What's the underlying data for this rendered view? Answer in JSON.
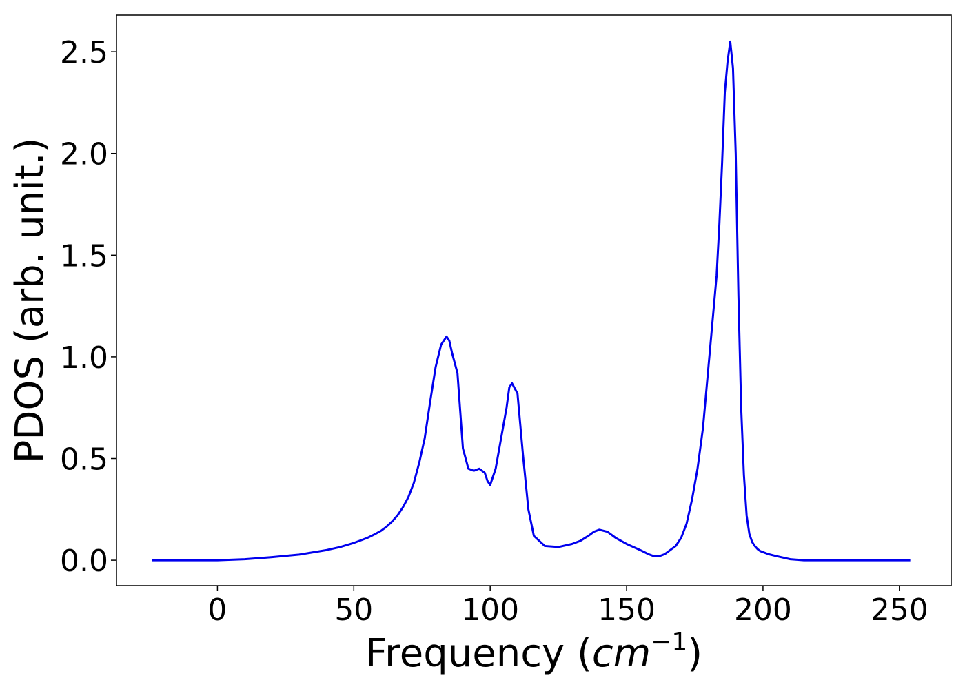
{
  "chart_data": {
    "type": "line",
    "title": "",
    "xlabel": {
      "prefix": "Frequency (",
      "math": "cm",
      "superscript": "−1",
      "suffix": ")"
    },
    "ylabel": "PDOS (arb. unit.)",
    "xlim": [
      -37,
      269
    ],
    "ylim": [
      -0.125,
      2.68
    ],
    "xticks": [
      0,
      50,
      100,
      150,
      200,
      250
    ],
    "xtick_labels": [
      "0",
      "50",
      "100",
      "150",
      "200",
      "250"
    ],
    "yticks": [
      0.0,
      0.5,
      1.0,
      1.5,
      2.0,
      2.5
    ],
    "ytick_labels": [
      "0.0",
      "0.5",
      "1.0",
      "1.5",
      "2.0",
      "2.5"
    ],
    "grid": false,
    "legend": "none",
    "series": [
      {
        "color": "#0000ee",
        "x": [
          -24,
          0,
          10,
          20,
          30,
          40,
          45,
          50,
          55,
          58,
          60,
          62,
          64,
          66,
          68,
          70,
          72,
          74,
          76,
          78,
          80,
          82,
          84,
          85,
          86,
          88,
          90,
          92,
          94,
          96,
          98,
          99,
          100,
          102,
          104,
          106,
          107,
          108,
          110,
          112,
          114,
          116,
          120,
          125,
          130,
          133,
          136,
          138,
          140,
          143,
          146,
          150,
          155,
          158,
          160,
          162,
          164,
          166,
          168,
          170,
          172,
          174,
          176,
          178,
          180,
          182,
          183,
          184,
          185,
          186,
          187,
          188,
          189,
          190,
          191,
          192,
          193,
          194,
          195,
          196,
          197,
          198,
          199,
          200,
          202,
          205,
          210,
          215,
          220,
          225,
          230,
          233,
          235,
          240,
          250,
          254
        ],
        "values": [
          0.0,
          0.0,
          0.005,
          0.015,
          0.028,
          0.05,
          0.065,
          0.085,
          0.11,
          0.13,
          0.145,
          0.165,
          0.19,
          0.22,
          0.26,
          0.31,
          0.38,
          0.48,
          0.6,
          0.78,
          0.95,
          1.06,
          1.1,
          1.08,
          1.02,
          0.92,
          0.55,
          0.45,
          0.44,
          0.45,
          0.43,
          0.39,
          0.37,
          0.45,
          0.6,
          0.75,
          0.85,
          0.87,
          0.82,
          0.52,
          0.25,
          0.12,
          0.07,
          0.065,
          0.08,
          0.095,
          0.12,
          0.14,
          0.15,
          0.14,
          0.11,
          0.08,
          0.05,
          0.03,
          0.02,
          0.02,
          0.03,
          0.05,
          0.07,
          0.11,
          0.18,
          0.3,
          0.45,
          0.65,
          0.95,
          1.25,
          1.4,
          1.65,
          1.95,
          2.3,
          2.45,
          2.55,
          2.42,
          2.0,
          1.3,
          0.75,
          0.42,
          0.22,
          0.13,
          0.09,
          0.07,
          0.055,
          0.045,
          0.04,
          0.03,
          0.02,
          0.005,
          0.0,
          0.0,
          0.0,
          0.0,
          0.0,
          0.0,
          0.0,
          0.0,
          0.0
        ]
      }
    ]
  }
}
